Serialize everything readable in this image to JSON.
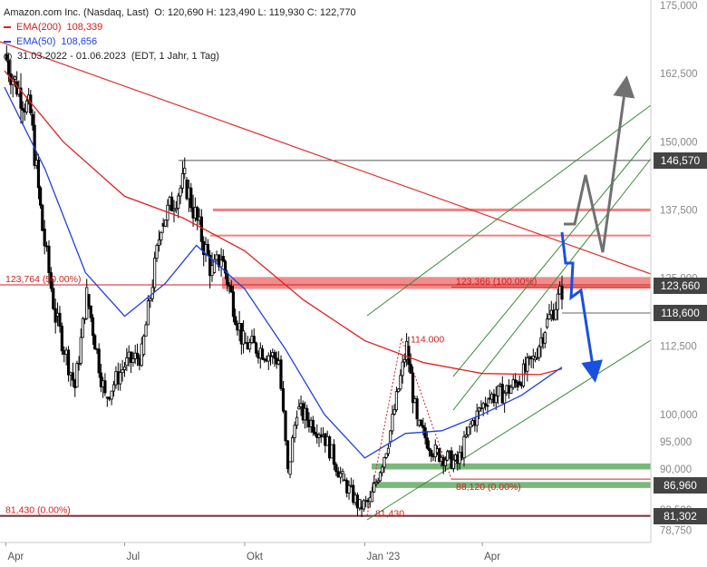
{
  "legend": {
    "title": "Amazon.com Inc. (Nasdaq, Last)",
    "ohlc": "O: 120,690  H: 123,490  L: 119,930  C: 122,770",
    "ema200_label": "EMA(200)",
    "ema200_value": "108,339",
    "ema50_label": "EMA(50)",
    "ema50_value": "108,656",
    "range": "31.03.2022 - 01.06.2023",
    "settings": "(EDT, 1 Jahr, 1 Tag)"
  },
  "colors": {
    "ema200": "#e02020",
    "ema50": "#2040e0",
    "candle": "#000000",
    "channel": "#3a8a3a",
    "support_zone": "#7ab87a",
    "resistance_zone": "#f08080",
    "scenario_down": "#1a4fe0",
    "scenario_up": "#707070",
    "price_box_dark": "#444444",
    "price_box_red": "#d02020"
  },
  "price_boxes": [
    {
      "value": 146.57,
      "label": "146,570",
      "style": "dark"
    },
    {
      "value": 123.66,
      "label": "123,660",
      "style": "dark"
    },
    {
      "value": 118.6,
      "label": "118,600",
      "style": "dark"
    },
    {
      "value": 86.96,
      "label": "86,960",
      "style": "dark"
    },
    {
      "value": 81.302,
      "label": "81,302",
      "style": "dark"
    }
  ],
  "annotations": {
    "fib_top": "123,764 (50.00%)",
    "fib_top_value": 123.764,
    "fib_bottom": "81,430 (0.00%)",
    "fib_bottom_value": 81.43,
    "fib2_top": "123,366 (100.00%)",
    "fib2_top_value": 123.366,
    "fib2_bottom": "88,120 (0.00%)",
    "fib2_bottom_value": 88.12,
    "high_label": "114.000",
    "high_value": 114.0,
    "low_label": "81,430",
    "low_value": 81.43
  },
  "chart_data": {
    "type": "candlestick",
    "title": "Amazon.com Inc. (Nasdaq, Last)",
    "y_axis": {
      "range": [
        76.5,
        176.0
      ],
      "ticks": [
        {
          "value": 175.0,
          "label": "175,000"
        },
        {
          "value": 162.5,
          "label": "162,500"
        },
        {
          "value": 150.0,
          "label": "150,000"
        },
        {
          "value": 137.5,
          "label": "137,500"
        },
        {
          "value": 125.0,
          "label": "125,000"
        },
        {
          "value": 112.5,
          "label": "112,500"
        },
        {
          "value": 100.0,
          "label": "100,000"
        },
        {
          "value": 95.0,
          "label": "95,000"
        },
        {
          "value": 90.0,
          "label": "90,000"
        },
        {
          "value": 82.5,
          "label": "82,500"
        },
        {
          "value": 78.75,
          "label": "78,750"
        }
      ]
    },
    "x_axis": {
      "start": "2022-03-31",
      "end": "2023-06-01",
      "ticks": [
        {
          "date": "2022-04-01",
          "label": "Apr"
        },
        {
          "date": "2022-07-01",
          "label": "Jul"
        },
        {
          "date": "2022-10-01",
          "label": "Okt"
        },
        {
          "date": "2023-01-01",
          "label": "Jan '23"
        },
        {
          "date": "2023-04-01",
          "label": "Apr"
        }
      ]
    },
    "price_path": [
      {
        "date": "2022-03-31",
        "close": 166.0
      },
      {
        "date": "2022-04-08",
        "close": 161.0
      },
      {
        "date": "2022-04-20",
        "close": 155.0
      },
      {
        "date": "2022-04-29",
        "close": 134.0
      },
      {
        "date": "2022-05-09",
        "close": 118.0
      },
      {
        "date": "2022-05-24",
        "close": 105.0
      },
      {
        "date": "2022-06-02",
        "close": 122.0
      },
      {
        "date": "2022-06-16",
        "close": 103.0
      },
      {
        "date": "2022-07-01",
        "close": 109.0
      },
      {
        "date": "2022-07-14",
        "close": 111.0
      },
      {
        "date": "2022-07-29",
        "close": 135.0
      },
      {
        "date": "2022-08-16",
        "close": 143.0
      },
      {
        "date": "2022-09-06",
        "close": 126.0
      },
      {
        "date": "2022-09-13",
        "close": 129.0
      },
      {
        "date": "2022-09-30",
        "close": 113.0
      },
      {
        "date": "2022-10-13",
        "close": 112.0
      },
      {
        "date": "2022-10-27",
        "close": 110.0
      },
      {
        "date": "2022-11-03",
        "close": 89.0
      },
      {
        "date": "2022-11-10",
        "close": 101.0
      },
      {
        "date": "2022-11-30",
        "close": 96.5
      },
      {
        "date": "2022-12-15",
        "close": 88.0
      },
      {
        "date": "2022-12-28",
        "close": 83.0
      },
      {
        "date": "2023-01-05",
        "close": 84.0
      },
      {
        "date": "2023-01-19",
        "close": 95.0
      },
      {
        "date": "2023-02-02",
        "close": 112.5
      },
      {
        "date": "2023-02-10",
        "close": 98.0
      },
      {
        "date": "2023-02-24",
        "close": 93.0
      },
      {
        "date": "2023-03-13",
        "close": 91.0
      },
      {
        "date": "2023-03-23",
        "close": 98.0
      },
      {
        "date": "2023-04-05",
        "close": 103.0
      },
      {
        "date": "2023-04-18",
        "close": 104.0
      },
      {
        "date": "2023-04-28",
        "close": 106.0
      },
      {
        "date": "2023-05-10",
        "close": 110.0
      },
      {
        "date": "2023-05-19",
        "close": 116.0
      },
      {
        "date": "2023-06-01",
        "close": 122.77
      }
    ],
    "series": [
      {
        "name": "EMA(200)",
        "color": "#e02020",
        "points": [
          {
            "date": "2022-03-31",
            "value": 163.0
          },
          {
            "date": "2022-05-15",
            "value": 150.0
          },
          {
            "date": "2022-07-01",
            "value": 140.0
          },
          {
            "date": "2022-08-15",
            "value": 136.0
          },
          {
            "date": "2022-10-01",
            "value": 130.0
          },
          {
            "date": "2022-11-15",
            "value": 121.0
          },
          {
            "date": "2023-01-01",
            "value": 113.5
          },
          {
            "date": "2023-02-15",
            "value": 109.5
          },
          {
            "date": "2023-04-01",
            "value": 107.5
          },
          {
            "date": "2023-05-15",
            "value": 107.3
          },
          {
            "date": "2023-06-01",
            "value": 108.339
          }
        ]
      },
      {
        "name": "EMA(50)",
        "color": "#2040e0",
        "points": [
          {
            "date": "2022-03-31",
            "value": 160.0
          },
          {
            "date": "2022-05-01",
            "value": 145.0
          },
          {
            "date": "2022-06-01",
            "value": 126.0
          },
          {
            "date": "2022-07-01",
            "value": 118.0
          },
          {
            "date": "2022-08-01",
            "value": 124.0
          },
          {
            "date": "2022-08-25",
            "value": 131.0
          },
          {
            "date": "2022-10-01",
            "value": 123.0
          },
          {
            "date": "2022-11-01",
            "value": 112.0
          },
          {
            "date": "2022-12-01",
            "value": 100.0
          },
          {
            "date": "2023-01-01",
            "value": 92.0
          },
          {
            "date": "2023-02-01",
            "value": 96.5
          },
          {
            "date": "2023-03-01",
            "value": 97.0
          },
          {
            "date": "2023-04-01",
            "value": 100.0
          },
          {
            "date": "2023-05-01",
            "value": 103.5
          },
          {
            "date": "2023-06-01",
            "value": 108.656
          }
        ]
      }
    ],
    "horizontal_levels": [
      146.57,
      137.5,
      132.8,
      123.764,
      123.66,
      118.6,
      90.5,
      86.96,
      81.302
    ],
    "grid": false,
    "legend_position": "top-left"
  }
}
